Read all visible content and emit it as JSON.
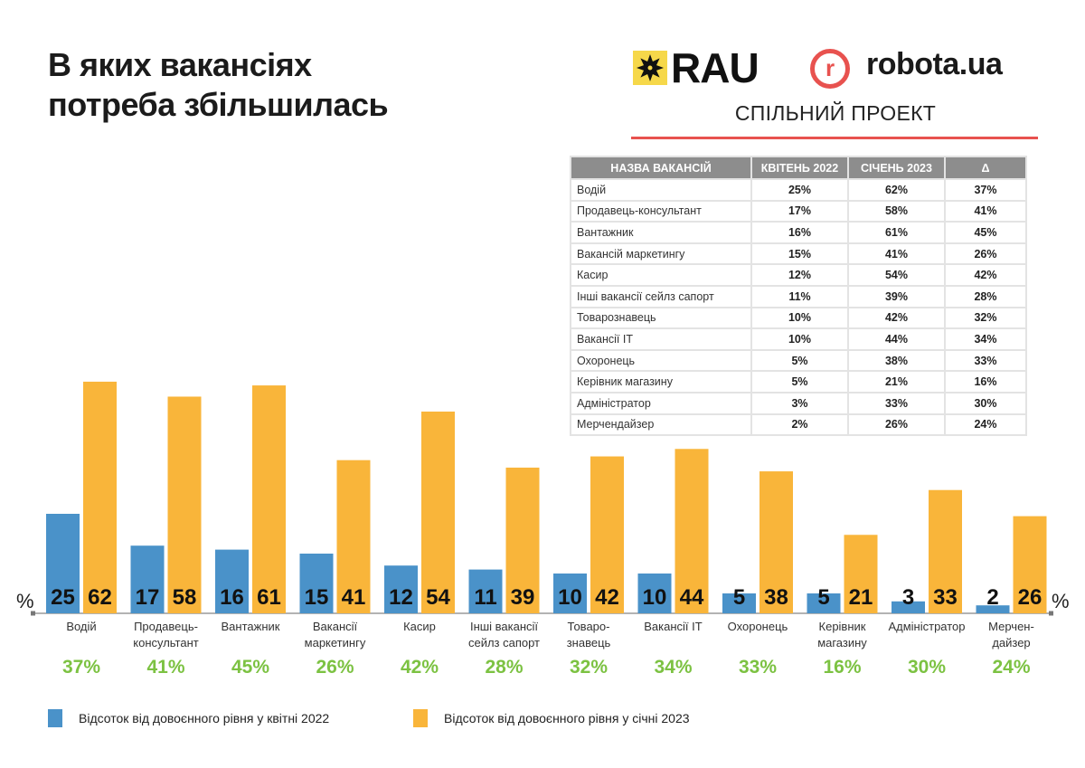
{
  "title": {
    "line1": "В яких вакансіях",
    "line2": "потреба збільшилась"
  },
  "logos": {
    "rau": "RAU",
    "robota_mark": "r",
    "robota": "robota.ua",
    "joint_project": "СПІЛЬНИЙ ПРОЕКТ"
  },
  "colors": {
    "blue": "#4a92c9",
    "orange": "#f9b53a",
    "green": "#7cc242",
    "red": "#e8524f",
    "header_gray": "#8d8d8d"
  },
  "table": {
    "headers": [
      "НАЗВА ВАКАНСІЙ",
      "КВІТЕНЬ 2022",
      "СІЧЕНЬ 2023",
      "Δ"
    ],
    "rows": [
      [
        "Водій",
        "25%",
        "62%",
        "37%"
      ],
      [
        "Продавець-консультант",
        "17%",
        "58%",
        "41%"
      ],
      [
        "Вантажник",
        "16%",
        "61%",
        "45%"
      ],
      [
        "Вакансій маркетингу",
        "15%",
        "41%",
        "26%"
      ],
      [
        "Касир",
        "12%",
        "54%",
        "42%"
      ],
      [
        "Інші вакансії сейлз сапорт",
        "11%",
        "39%",
        "28%"
      ],
      [
        "Товарознавець",
        "10%",
        "42%",
        "32%"
      ],
      [
        "Вакансії IT",
        "10%",
        "44%",
        "34%"
      ],
      [
        "Охоронець",
        "5%",
        "38%",
        "33%"
      ],
      [
        "Керівник магазину",
        "5%",
        "21%",
        "16%"
      ],
      [
        "Адміністратор",
        "3%",
        "33%",
        "30%"
      ],
      [
        "Мерчендайзер",
        "2%",
        "26%",
        "24%"
      ]
    ]
  },
  "chart_data": {
    "type": "bar",
    "title": "В яких вакансіях потреба збільшилась",
    "axis_unit_label": "%",
    "categories": [
      [
        "Водій"
      ],
      [
        "Продавець-",
        "консультант"
      ],
      [
        "Вантажник"
      ],
      [
        "Вакансії",
        "маркетингу"
      ],
      [
        "Касир"
      ],
      [
        "Інші вакансії",
        "сейлз сапорт"
      ],
      [
        "Товаро-",
        "знавець"
      ],
      [
        "Вакансії IT"
      ],
      [
        "Охоронець"
      ],
      [
        "Керівник",
        "магазину"
      ],
      [
        "Адміністратор"
      ],
      [
        "Мерчен-",
        "дайзер"
      ]
    ],
    "series": [
      {
        "name": "Відсоток від довоєнного рівня у квітні 2022",
        "color": "#4a92c9",
        "values": [
          25,
          17,
          16,
          15,
          12,
          11,
          10,
          10,
          5,
          5,
          3,
          2
        ]
      },
      {
        "name": "Відсоток від довоєнного рівня у січні 2023",
        "color": "#f9b53a",
        "values": [
          62,
          58,
          61,
          41,
          54,
          39,
          42,
          44,
          38,
          21,
          33,
          26
        ]
      }
    ],
    "deltas": [
      "37%",
      "41%",
      "45%",
      "26%",
      "42%",
      "28%",
      "32%",
      "34%",
      "33%",
      "16%",
      "30%",
      "24%"
    ],
    "ylim": [
      0,
      62
    ],
    "grid": false,
    "legend_position": "bottom-left"
  }
}
